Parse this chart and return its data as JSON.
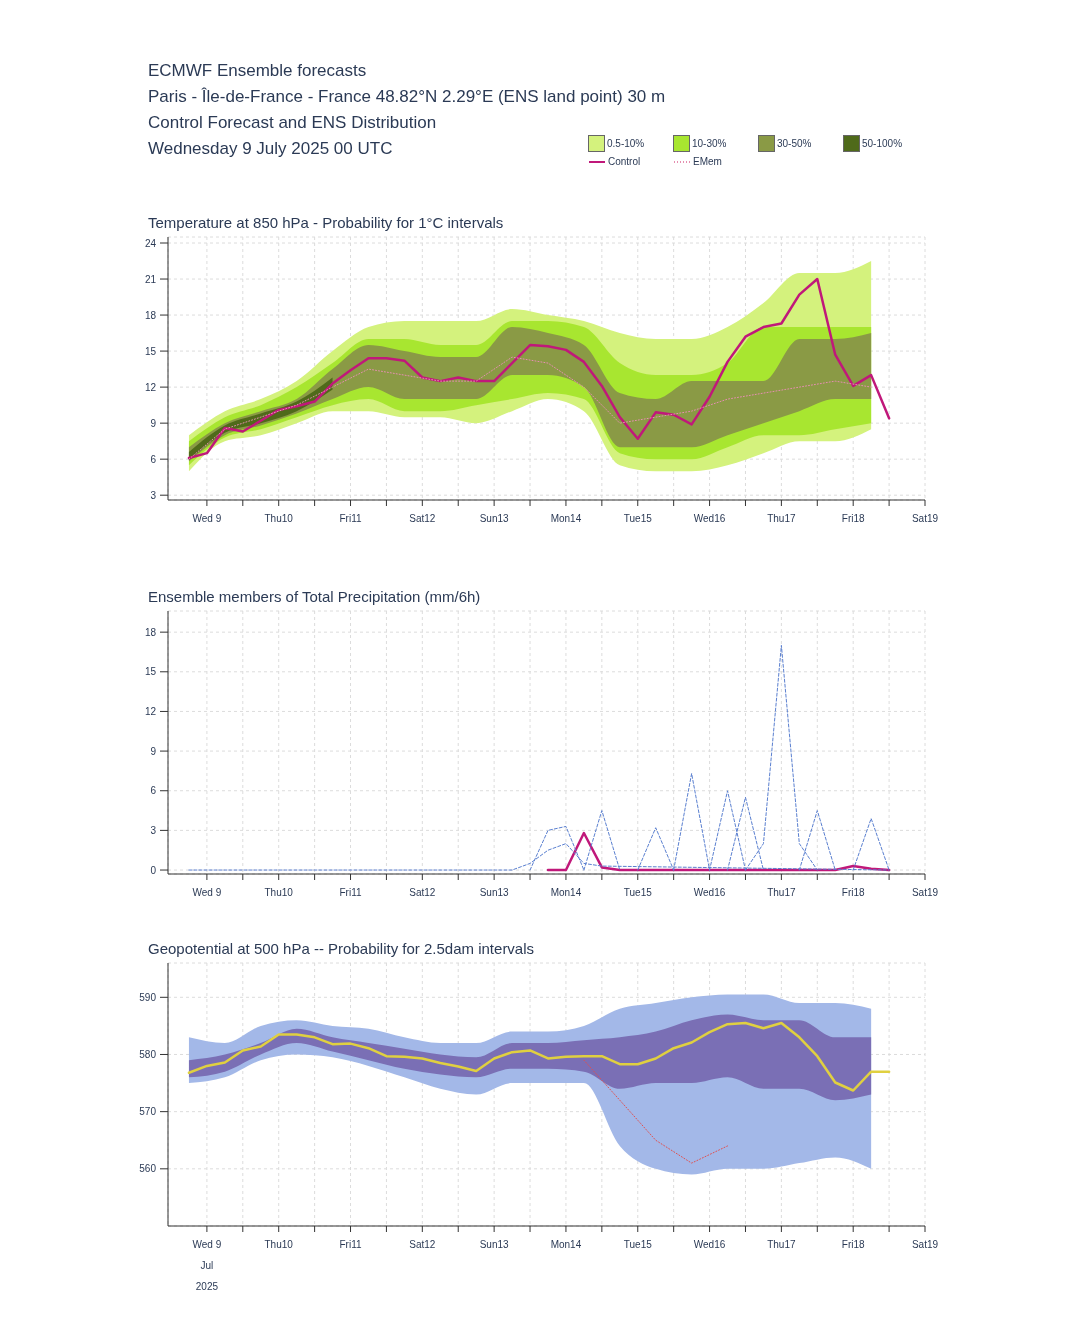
{
  "chart_data": [
    {
      "type": "line",
      "title": "ECMWF Ensemble forecasts",
      "subtitle": "Paris - Île-de-France - France 48.82°N 2.29°E (ENS land point) 30 m\nControl Forecast and ENS Distribution\nWednesday 9 July 2025 00 UTC",
      "annotations": [
        "Temperature at 850 hPa - Probability for 1°C intervals"
      ],
      "legend": "top right",
      "grid": true,
      "marker": "none",
      "x": [
        "2025-07-09T00:00",
        "2025-07-09T06:00",
        "2025-07-09T12:00",
        "2025-07-09T18:00",
        "2025-07-10T00:00",
        "2025-07-10T06:00",
        "2025-07-10T12:00",
        "2025-07-10T18:00",
        "2025-07-11T00:00",
        "2025-07-11T06:00",
        "2025-07-11T12:00",
        "2025-07-11T18:00",
        "2025-07-12T00:00",
        "2025-07-12T06:00",
        "2025-07-12T12:00",
        "2025-07-12T18:00",
        "2025-07-13T00:00",
        "2025-07-13T06:00",
        "2025-07-13T12:00",
        "2025-07-13T18:00",
        "2025-07-14T00:00",
        "2025-07-14T06:00",
        "2025-07-14T12:00",
        "2025-07-14T18:00",
        "2025-07-15T00:00",
        "2025-07-15T06:00",
        "2025-07-15T12:00",
        "2025-07-15T18:00",
        "2025-07-16T00:00",
        "2025-07-16T06:00",
        "2025-07-16T12:00",
        "2025-07-16T18:00",
        "2025-07-17T00:00",
        "2025-07-17T06:00",
        "2025-07-17T12:00",
        "2025-07-17T18:00",
        "2025-07-18T00:00",
        "2025-07-18T06:00",
        "2025-07-18T12:00",
        "2025-07-18T18:00"
      ],
      "xlim": [
        "2025-07-08T17:00",
        "2025-07-19T06:00"
      ],
      "xticks": [
        {
          "value": "2025-07-09T06:00",
          "label": "Wed 9"
        },
        {
          "value": "2025-07-09T18:00",
          "label": null
        },
        {
          "value": "2025-07-10T06:00",
          "label": "Thu10"
        },
        {
          "value": "2025-07-10T18:00",
          "label": null
        },
        {
          "value": "2025-07-11T06:00",
          "label": "Fri11"
        },
        {
          "value": "2025-07-11T18:00",
          "label": null
        },
        {
          "value": "2025-07-12T06:00",
          "label": "Sat12"
        },
        {
          "value": "2025-07-12T18:00",
          "label": null
        },
        {
          "value": "2025-07-13T06:00",
          "label": "Sun13"
        },
        {
          "value": "2025-07-13T18:00",
          "label": null
        },
        {
          "value": "2025-07-14T06:00",
          "label": "Mon14"
        },
        {
          "value": "2025-07-14T18:00",
          "label": null
        },
        {
          "value": "2025-07-15T06:00",
          "label": "Tue15"
        },
        {
          "value": "2025-07-15T18:00",
          "label": null
        },
        {
          "value": "2025-07-16T06:00",
          "label": "Wed16"
        },
        {
          "value": "2025-07-16T18:00",
          "label": null
        },
        {
          "value": "2025-07-17T06:00",
          "label": "Thu17"
        },
        {
          "value": "2025-07-17T18:00",
          "label": null
        },
        {
          "value": "2025-07-18T06:00",
          "label": "Fri18"
        },
        {
          "value": "2025-07-18T18:00",
          "label": null
        },
        {
          "value": "2025-07-19T06:00",
          "label": "Sat19"
        }
      ],
      "ylim": [
        2.6,
        24.5
      ],
      "yticks": [
        3,
        6,
        9,
        12,
        15,
        18,
        21,
        24
      ],
      "series": [
        {
          "name": "0.5-10%",
          "type": "area",
          "color": "#d4f27d",
          "x": [
            "2025-07-09T00:00",
            "2025-07-09T12:00",
            "2025-07-10T00:00",
            "2025-07-10T12:00",
            "2025-07-11T00:00",
            "2025-07-11T12:00",
            "2025-07-12T00:00",
            "2025-07-12T12:00",
            "2025-07-13T00:00",
            "2025-07-13T12:00",
            "2025-07-14T00:00",
            "2025-07-14T12:00",
            "2025-07-15T00:00",
            "2025-07-15T12:00",
            "2025-07-16T00:00",
            "2025-07-16T12:00",
            "2025-07-17T00:00",
            "2025-07-17T12:00",
            "2025-07-18T00:00",
            "2025-07-18T12:00"
          ],
          "lower": [
            5,
            7.5,
            8,
            9,
            10,
            10,
            9.5,
            9.5,
            9,
            10,
            11,
            10,
            5.5,
            5,
            5,
            5.5,
            6.5,
            7.5,
            7.5,
            8.5
          ],
          "upper": [
            8,
            10,
            11,
            12.5,
            15,
            17,
            17.5,
            17.5,
            17.5,
            18.5,
            18,
            17.5,
            16.5,
            16,
            16,
            17,
            19,
            21.5,
            21.5,
            22.5
          ],
          "values": [
            null,
            null,
            null,
            null,
            null,
            null,
            null,
            null,
            null,
            null,
            null,
            null,
            null,
            null,
            null,
            null,
            null,
            null,
            null,
            null
          ]
        },
        {
          "name": "10-30%",
          "type": "area",
          "color": "#a8e630",
          "x": [
            "2025-07-09T00:00",
            "2025-07-09T12:00",
            "2025-07-10T00:00",
            "2025-07-10T12:00",
            "2025-07-11T00:00",
            "2025-07-11T12:00",
            "2025-07-12T00:00",
            "2025-07-12T12:00",
            "2025-07-13T00:00",
            "2025-07-13T12:00",
            "2025-07-14T00:00",
            "2025-07-14T12:00",
            "2025-07-15T00:00",
            "2025-07-15T12:00",
            "2025-07-16T00:00",
            "2025-07-16T12:00",
            "2025-07-17T00:00",
            "2025-07-17T12:00",
            "2025-07-18T00:00",
            "2025-07-18T12:00"
          ],
          "lower": [
            5.5,
            7.8,
            8.5,
            9.5,
            10.5,
            11,
            10,
            10,
            10.5,
            11,
            11.5,
            11,
            6.5,
            6,
            6,
            7,
            8,
            8,
            8.5,
            9
          ],
          "upper": [
            7.5,
            9.5,
            10.5,
            12,
            14,
            16,
            16,
            15.5,
            15.5,
            17.5,
            17.5,
            17,
            14,
            13,
            13,
            14,
            17,
            17,
            17,
            17
          ],
          "values": [
            null,
            null,
            null,
            null,
            null,
            null,
            null,
            null,
            null,
            null,
            null,
            null,
            null,
            null,
            null,
            null,
            null,
            null,
            null,
            null
          ]
        },
        {
          "name": "30-50%",
          "type": "area",
          "color": "#8a9a45",
          "x": [
            "2025-07-09T00:00",
            "2025-07-09T12:00",
            "2025-07-10T00:00",
            "2025-07-10T12:00",
            "2025-07-11T00:00",
            "2025-07-11T12:00",
            "2025-07-12T00:00",
            "2025-07-12T12:00",
            "2025-07-13T00:00",
            "2025-07-13T12:00",
            "2025-07-14T00:00",
            "2025-07-14T12:00",
            "2025-07-15T00:00",
            "2025-07-15T12:00",
            "2025-07-16T00:00",
            "2025-07-16T12:00",
            "2025-07-17T00:00",
            "2025-07-17T12:00",
            "2025-07-18T00:00",
            "2025-07-18T12:00"
          ],
          "lower": [
            5.8,
            8,
            8.8,
            9.8,
            11,
            12,
            11,
            11,
            11,
            13,
            13,
            12,
            7,
            7,
            7,
            8,
            9,
            10,
            11,
            11
          ],
          "upper": [
            7,
            9,
            10,
            11,
            13.5,
            15.5,
            15,
            14.5,
            14.5,
            17,
            16.5,
            15.5,
            11.5,
            11,
            12.5,
            12.5,
            12.5,
            16,
            16,
            16.5
          ],
          "values": [
            null,
            null,
            null,
            null,
            null,
            null,
            null,
            null,
            null,
            null,
            null,
            null,
            null,
            null,
            null,
            null,
            null,
            null,
            null,
            null
          ]
        },
        {
          "name": "50-100%",
          "type": "area",
          "color": "#4f6a1a",
          "x": [
            "2025-07-09T00:00",
            "2025-07-09T12:00",
            "2025-07-10T00:00",
            "2025-07-10T12:00",
            "2025-07-11T00:00"
          ],
          "lower": [
            5.9,
            8.2,
            9,
            10,
            11.8
          ],
          "upper": [
            6.6,
            8.8,
            9.8,
            10.8,
            12.8
          ],
          "values": [
            null,
            null,
            null,
            null,
            null
          ]
        },
        {
          "name": "Control",
          "color": "#c0187a",
          "values": [
            6.1,
            6.5,
            8.6,
            8.3,
            9.2,
            10.1,
            10.4,
            10.8,
            12.3,
            13.4,
            14.4,
            14.4,
            14.2,
            12.8,
            12.5,
            12.8,
            12.5,
            12.5,
            14.0,
            15.5,
            15.4,
            15.1,
            14.1,
            12.1,
            9.5,
            7.7,
            9.9,
            9.7,
            8.9,
            11.2,
            14.1,
            16.2,
            17.0,
            17.3,
            19.7,
            21.0,
            14.7,
            12.1,
            13.0,
            9.4
          ]
        },
        {
          "name": "EMem",
          "color": "#e58fb0",
          "line_style": "dotted",
          "x": [
            "2025-07-09T00:00",
            "2025-07-09T12:00",
            "2025-07-10T00:00",
            "2025-07-10T12:00",
            "2025-07-11T00:00",
            "2025-07-11T12:00",
            "2025-07-12T00:00",
            "2025-07-12T12:00",
            "2025-07-13T00:00",
            "2025-07-13T12:00",
            "2025-07-14T00:00",
            "2025-07-14T12:00",
            "2025-07-15T00:00",
            "2025-07-15T12:00",
            "2025-07-16T00:00",
            "2025-07-16T12:00",
            "2025-07-17T00:00",
            "2025-07-17T12:00",
            "2025-07-18T00:00",
            "2025-07-18T12:00"
          ],
          "values": [
            6,
            8.5,
            9.5,
            10.5,
            12,
            13.5,
            13,
            12.5,
            12.5,
            14.5,
            14,
            12,
            9,
            9.5,
            10,
            11,
            11.5,
            12,
            12.5,
            12
          ]
        }
      ]
    },
    {
      "type": "line",
      "title": "Ensemble members of Total Precipitation (mm/6h)",
      "grid": true,
      "marker": "none",
      "xlim": [
        "2025-07-08T17:00",
        "2025-07-19T06:00"
      ],
      "xticks": [
        {
          "value": "2025-07-09T06:00",
          "label": "Wed 9"
        },
        {
          "value": "2025-07-09T18:00",
          "label": null
        },
        {
          "value": "2025-07-10T06:00",
          "label": "Thu10"
        },
        {
          "value": "2025-07-10T18:00",
          "label": null
        },
        {
          "value": "2025-07-11T06:00",
          "label": "Fri11"
        },
        {
          "value": "2025-07-11T18:00",
          "label": null
        },
        {
          "value": "2025-07-12T06:00",
          "label": "Sat12"
        },
        {
          "value": "2025-07-12T18:00",
          "label": null
        },
        {
          "value": "2025-07-13T06:00",
          "label": "Sun13"
        },
        {
          "value": "2025-07-13T18:00",
          "label": null
        },
        {
          "value": "2025-07-14T06:00",
          "label": "Mon14"
        },
        {
          "value": "2025-07-14T18:00",
          "label": null
        },
        {
          "value": "2025-07-15T06:00",
          "label": "Tue15"
        },
        {
          "value": "2025-07-15T18:00",
          "label": null
        },
        {
          "value": "2025-07-16T06:00",
          "label": "Wed16"
        },
        {
          "value": "2025-07-16T18:00",
          "label": null
        },
        {
          "value": "2025-07-17T06:00",
          "label": "Thu17"
        },
        {
          "value": "2025-07-17T18:00",
          "label": null
        },
        {
          "value": "2025-07-18T06:00",
          "label": "Fri18"
        },
        {
          "value": "2025-07-18T18:00",
          "label": null
        },
        {
          "value": "2025-07-19T06:00",
          "label": "Sat19"
        }
      ],
      "ylim": [
        -0.3,
        19.6
      ],
      "yticks": [
        0,
        3,
        6,
        9,
        12,
        15,
        18
      ],
      "series": [
        {
          "color": "#c0187a",
          "x": [
            "2025-07-14T00:00",
            "2025-07-14T06:00",
            "2025-07-14T12:00",
            "2025-07-14T18:00",
            "2025-07-15T00:00",
            "2025-07-17T18:00",
            "2025-07-18T00:00",
            "2025-07-18T06:00",
            "2025-07-18T12:00",
            "2025-07-18T18:00"
          ],
          "values": [
            0,
            0,
            2.8,
            0.2,
            0,
            0,
            0,
            0.3,
            0.1,
            0
          ]
        },
        {
          "color": "#5a7fd0",
          "line_style": "dashed",
          "x": [
            "2025-07-09T00:00",
            "2025-07-13T12:00",
            "2025-07-13T18:00",
            "2025-07-14T00:00",
            "2025-07-14T06:00",
            "2025-07-14T12:00",
            "2025-07-14T18:00",
            "2025-07-18T18:00"
          ],
          "values": [
            0,
            0,
            0.5,
            1.5,
            2,
            0.5,
            0.3,
            0
          ]
        },
        {
          "color": "#5a7fd0",
          "line_style": "dashed",
          "x": [
            "2025-07-13T18:00",
            "2025-07-14T00:00",
            "2025-07-14T06:00",
            "2025-07-14T12:00"
          ],
          "values": [
            0,
            3,
            3.3,
            0
          ]
        },
        {
          "color": "#5a7fd0",
          "line_style": "dashed",
          "x": [
            "2025-07-14T12:00",
            "2025-07-14T18:00",
            "2025-07-15T00:00"
          ],
          "values": [
            0,
            4.5,
            0
          ]
        },
        {
          "color": "#5a7fd0",
          "line_style": "dashed",
          "x": [
            "2025-07-15T06:00",
            "2025-07-15T12:00",
            "2025-07-15T18:00"
          ],
          "values": [
            0,
            3.2,
            0
          ]
        },
        {
          "color": "#5a7fd0",
          "line_style": "dashed",
          "x": [
            "2025-07-15T18:00",
            "2025-07-16T00:00",
            "2025-07-16T06:00"
          ],
          "values": [
            0,
            7.3,
            0
          ]
        },
        {
          "color": "#5a7fd0",
          "line_style": "dashed",
          "x": [
            "2025-07-16T06:00",
            "2025-07-16T12:00",
            "2025-07-16T18:00"
          ],
          "values": [
            0,
            6,
            0
          ]
        },
        {
          "color": "#5a7fd0",
          "line_style": "dashed",
          "x": [
            "2025-07-16T12:00",
            "2025-07-16T18:00",
            "2025-07-17T00:00"
          ],
          "values": [
            0,
            5.5,
            0
          ]
        },
        {
          "color": "#5a7fd0",
          "line_style": "dashed",
          "x": [
            "2025-07-16T18:00",
            "2025-07-17T00:00",
            "2025-07-17T06:00",
            "2025-07-17T12:00",
            "2025-07-17T18:00"
          ],
          "values": [
            0,
            2,
            17,
            2,
            0
          ]
        },
        {
          "color": "#5a7fd0",
          "line_style": "dashed",
          "x": [
            "2025-07-17T12:00",
            "2025-07-17T18:00",
            "2025-07-18T00:00"
          ],
          "values": [
            0,
            4.5,
            0
          ]
        },
        {
          "color": "#5a7fd0",
          "line_style": "dashed",
          "x": [
            "2025-07-18T06:00",
            "2025-07-18T12:00",
            "2025-07-18T18:00"
          ],
          "values": [
            0,
            3.9,
            0
          ]
        }
      ]
    },
    {
      "type": "line",
      "title": "Geopotential at 500 hPa -- Probability for 2.5dam intervals",
      "grid": true,
      "marker": "none",
      "x": [
        "2025-07-09T00:00",
        "2025-07-09T06:00",
        "2025-07-09T12:00",
        "2025-07-09T18:00",
        "2025-07-10T00:00",
        "2025-07-10T06:00",
        "2025-07-10T12:00",
        "2025-07-10T18:00",
        "2025-07-11T00:00",
        "2025-07-11T06:00",
        "2025-07-11T12:00",
        "2025-07-11T18:00",
        "2025-07-12T00:00",
        "2025-07-12T06:00",
        "2025-07-12T12:00",
        "2025-07-12T18:00",
        "2025-07-13T00:00",
        "2025-07-13T06:00",
        "2025-07-13T12:00",
        "2025-07-13T18:00",
        "2025-07-14T00:00",
        "2025-07-14T06:00",
        "2025-07-14T12:00",
        "2025-07-14T18:00",
        "2025-07-15T00:00",
        "2025-07-15T06:00",
        "2025-07-15T12:00",
        "2025-07-15T18:00",
        "2025-07-16T00:00",
        "2025-07-16T06:00",
        "2025-07-16T12:00",
        "2025-07-16T18:00",
        "2025-07-17T00:00",
        "2025-07-17T06:00",
        "2025-07-17T12:00",
        "2025-07-17T18:00",
        "2025-07-18T00:00",
        "2025-07-18T06:00",
        "2025-07-18T12:00",
        "2025-07-18T18:00"
      ],
      "xlim": [
        "2025-07-08T17:00",
        "2025-07-19T06:00"
      ],
      "xticks": [
        {
          "value": "2025-07-09T06:00",
          "label": "Wed 9\nJul\n2025"
        },
        {
          "value": "2025-07-09T18:00",
          "label": null
        },
        {
          "value": "2025-07-10T06:00",
          "label": "Thu10"
        },
        {
          "value": "2025-07-10T18:00",
          "label": null
        },
        {
          "value": "2025-07-11T06:00",
          "label": "Fri11"
        },
        {
          "value": "2025-07-11T18:00",
          "label": null
        },
        {
          "value": "2025-07-12T06:00",
          "label": "Sat12"
        },
        {
          "value": "2025-07-12T18:00",
          "label": null
        },
        {
          "value": "2025-07-13T06:00",
          "label": "Sun13"
        },
        {
          "value": "2025-07-13T18:00",
          "label": null
        },
        {
          "value": "2025-07-14T06:00",
          "label": "Mon14"
        },
        {
          "value": "2025-07-14T18:00",
          "label": null
        },
        {
          "value": "2025-07-15T06:00",
          "label": "Tue15"
        },
        {
          "value": "2025-07-15T18:00",
          "label": null
        },
        {
          "value": "2025-07-16T06:00",
          "label": "Wed16"
        },
        {
          "value": "2025-07-16T18:00",
          "label": null
        },
        {
          "value": "2025-07-17T06:00",
          "label": "Thu17"
        },
        {
          "value": "2025-07-17T18:00",
          "label": null
        },
        {
          "value": "2025-07-18T06:00",
          "label": "Fri18"
        },
        {
          "value": "2025-07-18T18:00",
          "label": null
        },
        {
          "value": "2025-07-19T06:00",
          "label": "Sat19"
        }
      ],
      "ylim": [
        550,
        596
      ],
      "yticks": [
        560,
        570,
        580,
        590
      ],
      "series": [
        {
          "type": "area",
          "color": "#a3b8e8",
          "x": [
            "2025-07-09T00:00",
            "2025-07-09T12:00",
            "2025-07-10T00:00",
            "2025-07-10T12:00",
            "2025-07-11T00:00",
            "2025-07-11T12:00",
            "2025-07-12T00:00",
            "2025-07-12T12:00",
            "2025-07-13T00:00",
            "2025-07-13T12:00",
            "2025-07-14T00:00",
            "2025-07-14T12:00",
            "2025-07-15T00:00",
            "2025-07-15T12:00",
            "2025-07-16T00:00",
            "2025-07-16T12:00",
            "2025-07-17T00:00",
            "2025-07-17T12:00",
            "2025-07-18T00:00",
            "2025-07-18T12:00"
          ],
          "lower": [
            575,
            576,
            579,
            580,
            579.5,
            578,
            576,
            574,
            573,
            575,
            575,
            575,
            564,
            560,
            559,
            560,
            560,
            561,
            562,
            560
          ],
          "upper": [
            583,
            582,
            585,
            586,
            585,
            584.5,
            583,
            582,
            582,
            584,
            584,
            585,
            588,
            589,
            590,
            590.5,
            590.5,
            589,
            589,
            588
          ],
          "values": [
            null,
            null,
            null,
            null,
            null,
            null,
            null,
            null,
            null,
            null,
            null,
            null,
            null,
            null,
            null,
            null,
            null,
            null,
            null,
            null
          ]
        },
        {
          "type": "area",
          "color": "#7a6fb5",
          "x": [
            "2025-07-09T00:00",
            "2025-07-09T12:00",
            "2025-07-10T00:00",
            "2025-07-10T12:00",
            "2025-07-11T00:00",
            "2025-07-11T12:00",
            "2025-07-12T00:00",
            "2025-07-12T12:00",
            "2025-07-13T00:00",
            "2025-07-13T12:00",
            "2025-07-14T00:00",
            "2025-07-14T12:00",
            "2025-07-15T00:00",
            "2025-07-15T12:00",
            "2025-07-16T00:00",
            "2025-07-16T12:00",
            "2025-07-17T00:00",
            "2025-07-17T12:00",
            "2025-07-18T00:00",
            "2025-07-18T12:00"
          ],
          "lower": [
            576,
            577,
            580,
            582,
            580.5,
            579,
            577.5,
            576.5,
            576,
            577.5,
            577.5,
            577,
            574,
            575,
            575,
            576,
            574,
            574,
            572,
            573
          ],
          "upper": [
            579,
            580,
            582,
            584.5,
            583,
            582,
            581,
            580,
            579.5,
            582,
            582,
            582.5,
            583,
            584,
            586,
            587,
            586,
            586,
            583,
            583
          ],
          "values": [
            null,
            null,
            null,
            null,
            null,
            null,
            null,
            null,
            null,
            null,
            null,
            null,
            null,
            null,
            null,
            null,
            null,
            null,
            null,
            null
          ]
        },
        {
          "color": "#e0d040",
          "values": [
            576.8,
            578,
            578.6,
            580.7,
            581.4,
            583.5,
            583.5,
            583,
            581.8,
            581.9,
            581.1,
            579.7,
            579.6,
            579.3,
            578.5,
            577.9,
            577.1,
            579.3,
            580.4,
            580.7,
            579.3,
            579.6,
            579.7,
            579.7,
            578.3,
            578.3,
            579.3,
            581.1,
            582.1,
            583.9,
            585.3,
            585.5,
            584.6,
            585.5,
            583,
            579.7,
            575.1,
            573.7,
            577,
            577
          ]
        },
        {
          "color": "#e05050",
          "line_style": "dotted",
          "x": [
            "2025-07-14T12:00",
            "2025-07-15T00:00",
            "2025-07-15T12:00",
            "2025-07-16T00:00",
            "2025-07-16T12:00"
          ],
          "values": [
            579,
            572,
            565,
            561,
            564
          ]
        }
      ]
    }
  ]
}
